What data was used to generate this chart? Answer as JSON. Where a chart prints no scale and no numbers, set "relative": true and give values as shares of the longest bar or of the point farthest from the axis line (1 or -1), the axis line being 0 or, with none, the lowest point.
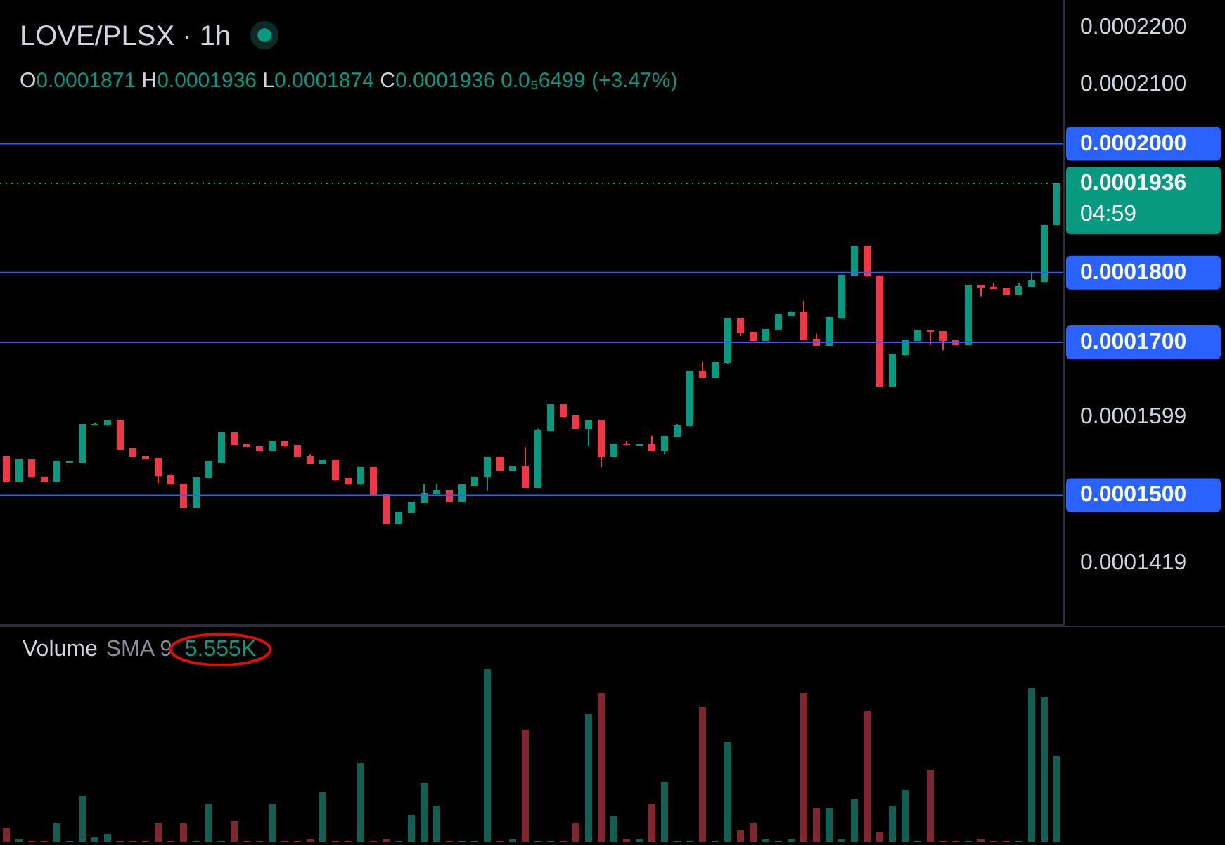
{
  "chart_data": [
    {
      "type": "candlestick",
      "title": "LOVE/PLSX · 1h",
      "subtitle": "O0.0001871 H0.0001936 L0.0001874 C0.0001936 0.0₅6499 (+3.47%)",
      "log": true,
      "categories": [
        null,
        null,
        null,
        null,
        null,
        null,
        null,
        null,
        null,
        null,
        null,
        null,
        null,
        null,
        null,
        null,
        null,
        null,
        null,
        null,
        null,
        null,
        null,
        null,
        null,
        null,
        null,
        null,
        null,
        null,
        null,
        null,
        null,
        null,
        null,
        null,
        null,
        null,
        null,
        null,
        null,
        null,
        null,
        null,
        null,
        null,
        null,
        null,
        null,
        null,
        null,
        null,
        null,
        null,
        null,
        null,
        null,
        null,
        null,
        null,
        null,
        null,
        null,
        null,
        null,
        null,
        null,
        null,
        null,
        null,
        null,
        null,
        null,
        null,
        null,
        null,
        null,
        null,
        null,
        null,
        null,
        null,
        null,
        null
      ],
      "ylim": [
        0.0001348,
        0.000225
      ],
      "yticks": [
        {
          "value": 0.0001419,
          "label": "0.0001419"
        },
        {
          "value": 0.0001599,
          "label": "0.0001599"
        },
        {
          "value": 0.00021,
          "label": "0.0002100"
        },
        {
          "value": 0.00022,
          "label": "0.0002200"
        }
      ],
      "ref_lines": [
        {
          "axis": "y",
          "value": 0.00015,
          "label": "0.0001500",
          "color": "#2962ff",
          "line_style": "solid"
        },
        {
          "axis": "y",
          "value": 0.00017,
          "label": "0.0001700",
          "color": "#2962ff",
          "line_style": "solid"
        },
        {
          "axis": "y",
          "value": 0.00018,
          "label": "0.0001800",
          "color": "#2962ff",
          "line_style": "solid"
        },
        {
          "axis": "y",
          "value": 0.0002,
          "label": "0.0002000",
          "color": "#2962ff",
          "line_style": "solid"
        },
        {
          "axis": "y",
          "value": 0.0001936,
          "label": "0.0001936\n04:59",
          "color": "#089981",
          "line_style": "dotted"
        }
      ],
      "colors": [
        "#f23645",
        "#089981",
        "#f23645",
        "#f23645",
        "#089981",
        "#089981",
        "#089981",
        "#089981",
        "#089981",
        "#f23645",
        "#f23645",
        "#f23645",
        "#f23645",
        "#f23645",
        "#f23645",
        "#089981",
        "#089981",
        "#089981",
        "#f23645",
        "#f23645",
        "#f23645",
        "#089981",
        "#f23645",
        "#f23645",
        "#f23645",
        "#089981",
        "#f23645",
        "#f23645",
        "#089981",
        "#f23645",
        "#f23645",
        "#089981",
        "#089981",
        "#089981",
        "#089981",
        "#f23645",
        "#089981",
        "#089981",
        "#089981",
        "#f23645",
        "#089981",
        "#f23645",
        "#089981",
        "#089981",
        "#f23645",
        "#f23645",
        "#089981",
        "#f23645",
        "#089981",
        "#f23645",
        "#089981",
        "#f23645",
        "#089981",
        "#089981",
        "#089981",
        "#f23645",
        "#089981",
        "#089981",
        "#f23645",
        "#f23645",
        "#089981",
        "#089981",
        "#089981",
        "#f23645",
        "#f23645",
        "#089981",
        "#089981",
        "#089981",
        "#f23645",
        "#f23645",
        "#089981",
        "#089981",
        "#089981",
        "#f23645",
        "#f23645",
        "#f23645",
        "#089981",
        "#f23645",
        "#f23645",
        "#f23645",
        "#089981",
        "#089981",
        "#089981",
        "#089981"
      ],
      "ohlc": [
        [
          0.0001549,
          0.0001549,
          0.0001517,
          0.0001517
        ],
        [
          0.0001517,
          0.0001545,
          0.0001517,
          0.0001545
        ],
        [
          0.0001545,
          0.0001545,
          0.0001522,
          0.0001522
        ],
        [
          0.0001523,
          0.0001523,
          0.0001517,
          0.0001517
        ],
        [
          0.0001517,
          0.0001542,
          0.0001517,
          0.0001542
        ],
        [
          0.0001541,
          0.0001542,
          0.0001541,
          0.0001542
        ],
        [
          0.0001541,
          0.000159,
          0.0001541,
          0.000159
        ],
        [
          0.0001588,
          0.0001591,
          0.0001588,
          0.000159
        ],
        [
          0.0001588,
          0.0001595,
          0.0001588,
          0.0001595
        ],
        [
          0.0001595,
          0.0001595,
          0.0001557,
          0.0001557
        ],
        [
          0.0001559,
          0.0001559,
          0.0001548,
          0.0001548
        ],
        [
          0.0001549,
          0.0001549,
          0.0001545,
          0.0001545
        ],
        [
          0.0001547,
          0.0001547,
          0.0001515,
          0.0001524
        ],
        [
          0.0001526,
          0.0001526,
          0.0001513,
          0.0001513
        ],
        [
          0.0001514,
          0.0001514,
          0.0001484,
          0.0001485
        ],
        [
          0.0001485,
          0.0001522,
          0.0001485,
          0.0001522
        ],
        [
          0.0001521,
          0.0001542,
          0.0001521,
          0.0001542
        ],
        [
          0.0001541,
          0.0001579,
          0.0001541,
          0.0001579
        ],
        [
          0.0001579,
          0.0001579,
          0.0001563,
          0.0001563
        ],
        [
          0.0001564,
          0.0001564,
          0.000156,
          0.000156
        ],
        [
          0.0001561,
          0.0001561,
          0.0001555,
          0.0001555
        ],
        [
          0.0001555,
          0.0001568,
          0.0001555,
          0.0001568
        ],
        [
          0.0001568,
          0.0001568,
          0.0001561,
          0.0001561
        ],
        [
          0.0001563,
          0.0001563,
          0.0001548,
          0.0001548
        ],
        [
          0.0001549,
          0.0001551,
          0.0001539,
          0.0001539
        ],
        [
          0.0001539,
          0.0001544,
          0.0001539,
          0.0001544
        ],
        [
          0.0001544,
          0.0001544,
          0.0001518,
          0.0001519
        ],
        [
          0.0001521,
          0.0001521,
          0.0001513,
          0.0001513
        ],
        [
          0.0001513,
          0.0001535,
          0.0001513,
          0.0001535
        ],
        [
          0.0001535,
          0.0001535,
          0.00015,
          0.00015
        ],
        [
          0.0001501,
          0.0001501,
          0.0001465,
          0.0001465
        ],
        [
          0.0001465,
          0.000148,
          0.0001465,
          0.000148
        ],
        [
          0.0001478,
          0.0001492,
          0.0001478,
          0.0001492
        ],
        [
          0.0001491,
          0.0001514,
          0.0001491,
          0.0001503
        ],
        [
          0.0001501,
          0.0001514,
          0.0001501,
          0.0001506
        ],
        [
          0.0001506,
          0.0001506,
          0.0001492,
          0.0001492
        ],
        [
          0.0001492,
          0.0001513,
          0.0001492,
          0.0001513
        ],
        [
          0.0001512,
          0.0001523,
          0.0001512,
          0.0001523
        ],
        [
          0.0001522,
          0.0001548,
          0.0001506,
          0.0001548
        ],
        [
          0.0001548,
          0.0001548,
          0.000153,
          0.000153
        ],
        [
          0.000153,
          0.0001536,
          0.000153,
          0.0001536
        ],
        [
          0.0001536,
          0.000156,
          0.0001509,
          0.0001509
        ],
        [
          0.0001509,
          0.0001584,
          0.0001509,
          0.0001582
        ],
        [
          0.0001581,
          0.0001616,
          0.0001581,
          0.0001616
        ],
        [
          0.0001616,
          0.0001616,
          0.0001599,
          0.0001599
        ],
        [
          0.0001601,
          0.0001601,
          0.0001584,
          0.0001584
        ],
        [
          0.0001584,
          0.0001595,
          0.0001561,
          0.0001595
        ],
        [
          0.0001595,
          0.0001595,
          0.0001535,
          0.0001548
        ],
        [
          0.0001548,
          0.0001565,
          0.0001548,
          0.0001565
        ],
        [
          0.0001565,
          0.0001568,
          0.0001563,
          0.0001563
        ],
        [
          0.0001563,
          0.0001564,
          0.0001563,
          0.0001564
        ],
        [
          0.0001564,
          0.0001575,
          0.0001555,
          0.0001555
        ],
        [
          0.0001555,
          0.0001575,
          0.0001551,
          0.0001575
        ],
        [
          0.0001574,
          0.000159,
          0.0001574,
          0.0001588
        ],
        [
          0.0001587,
          0.000166,
          0.0001587,
          0.000166
        ],
        [
          0.000166,
          0.0001673,
          0.0001652,
          0.0001652
        ],
        [
          0.0001652,
          0.0001673,
          0.0001652,
          0.0001673
        ],
        [
          0.0001672,
          0.0001734,
          0.000167,
          0.0001734
        ],
        [
          0.0001734,
          0.0001734,
          0.0001709,
          0.0001713
        ],
        [
          0.0001715,
          0.0001715,
          0.0001702,
          0.0001702
        ],
        [
          0.0001702,
          0.0001719,
          0.0001702,
          0.0001719
        ],
        [
          0.0001718,
          0.000174,
          0.0001718,
          0.000174
        ],
        [
          0.0001738,
          0.0001743,
          0.0001737,
          0.0001743
        ],
        [
          0.0001743,
          0.0001759,
          0.0001703,
          0.0001703
        ],
        [
          0.0001705,
          0.0001712,
          0.0001695,
          0.0001695
        ],
        [
          0.0001695,
          0.0001736,
          0.0001695,
          0.0001736
        ],
        [
          0.0001734,
          0.0001797,
          0.0001734,
          0.0001797
        ],
        [
          0.0001796,
          0.0001839,
          0.0001796,
          0.0001839
        ],
        [
          0.0001839,
          0.0001839,
          0.0001794,
          0.0001794
        ],
        [
          0.0001796,
          0.0001796,
          0.0001639,
          0.0001639
        ],
        [
          0.0001639,
          0.0001683,
          0.0001639,
          0.0001683
        ],
        [
          0.0001682,
          0.0001703,
          0.0001682,
          0.0001703
        ],
        [
          0.0001702,
          0.0001718,
          0.0001702,
          0.0001718
        ],
        [
          0.0001718,
          0.0001718,
          0.0001696,
          0.0001715
        ],
        [
          0.0001716,
          0.0001716,
          0.0001689,
          0.0001702
        ],
        [
          0.0001703,
          0.0001703,
          0.0001696,
          0.0001696
        ],
        [
          0.0001696,
          0.0001782,
          0.0001696,
          0.0001782
        ],
        [
          0.0001782,
          0.0001782,
          0.0001765,
          0.0001777
        ],
        [
          0.0001779,
          0.0001785,
          0.0001776,
          0.0001776
        ],
        [
          0.0001777,
          0.0001777,
          0.0001768,
          0.0001768
        ],
        [
          0.0001768,
          0.0001785,
          0.0001768,
          0.000178
        ],
        [
          0.0001779,
          0.00018,
          0.0001779,
          0.0001788
        ],
        [
          0.0001786,
          0.0001871,
          0.0001786,
          0.0001871
        ],
        [
          0.0001871,
          0.0001936,
          0.0001871,
          0.0001936
        ]
      ]
    },
    {
      "type": "bar",
      "relative": true,
      "title": "Volume",
      "subtitle": "SMA 9",
      "annotations": [
        "5.555K"
      ],
      "categories": [
        null,
        null,
        null,
        null,
        null,
        null,
        null,
        null,
        null,
        null,
        null,
        null,
        null,
        null,
        null,
        null,
        null,
        null,
        null,
        null,
        null,
        null,
        null,
        null,
        null,
        null,
        null,
        null,
        null,
        null,
        null,
        null,
        null,
        null,
        null,
        null,
        null,
        null,
        null,
        null,
        null,
        null,
        null,
        null,
        null,
        null,
        null,
        null,
        null,
        null,
        null,
        null,
        null,
        null,
        null,
        null,
        null,
        null,
        null,
        null,
        null,
        null,
        null,
        null,
        null,
        null,
        null,
        null,
        null,
        null,
        null,
        null,
        null,
        null,
        null,
        null,
        null,
        null,
        null,
        null,
        null,
        null,
        null,
        null
      ],
      "values": [
        0.08,
        0.02,
        0.01,
        0.01,
        0.11,
        0.01,
        0.27,
        0.03,
        0.05,
        0.01,
        0.01,
        0.01,
        0.11,
        0.01,
        0.11,
        0.01,
        0.22,
        0.01,
        0.12,
        0.01,
        0.01,
        0.22,
        0.01,
        0.01,
        0.02,
        0.29,
        0.01,
        0.01,
        0.46,
        0.01,
        0.02,
        0.01,
        0.16,
        0.34,
        0.21,
        0.01,
        0.01,
        0.01,
        1,
        0.01,
        0.02,
        0.65,
        0.01,
        0.01,
        0.01,
        0.11,
        0.74,
        0.86,
        0.15,
        0.02,
        0.02,
        0.22,
        0.35,
        0.01,
        0.01,
        0.78,
        0.01,
        0.58,
        0.07,
        0.11,
        0.02,
        0.01,
        0.02,
        0.86,
        0.2,
        0.2,
        0.02,
        0.25,
        0.76,
        0.06,
        0.21,
        0.3,
        0.01,
        0.42,
        0.01,
        0.01,
        0.01,
        0.02,
        0.01,
        0.01,
        0.01,
        0.89,
        0.84,
        0.5
      ],
      "colors": [
        "#7f2630",
        "#115e52",
        "#7f2630",
        "#7f2630",
        "#115e52",
        "#115e52",
        "#115e52",
        "#115e52",
        "#115e52",
        "#7f2630",
        "#7f2630",
        "#7f2630",
        "#7f2630",
        "#7f2630",
        "#7f2630",
        "#115e52",
        "#115e52",
        "#115e52",
        "#7f2630",
        "#7f2630",
        "#7f2630",
        "#115e52",
        "#7f2630",
        "#7f2630",
        "#7f2630",
        "#115e52",
        "#7f2630",
        "#7f2630",
        "#115e52",
        "#7f2630",
        "#7f2630",
        "#115e52",
        "#115e52",
        "#115e52",
        "#115e52",
        "#7f2630",
        "#115e52",
        "#115e52",
        "#115e52",
        "#7f2630",
        "#115e52",
        "#7f2630",
        "#115e52",
        "#115e52",
        "#7f2630",
        "#7f2630",
        "#115e52",
        "#7f2630",
        "#115e52",
        "#7f2630",
        "#115e52",
        "#7f2630",
        "#115e52",
        "#115e52",
        "#115e52",
        "#7f2630",
        "#115e52",
        "#115e52",
        "#7f2630",
        "#7f2630",
        "#115e52",
        "#115e52",
        "#115e52",
        "#7f2630",
        "#7f2630",
        "#115e52",
        "#115e52",
        "#115e52",
        "#7f2630",
        "#7f2630",
        "#115e52",
        "#115e52",
        "#115e52",
        "#7f2630",
        "#7f2630",
        "#7f2630",
        "#115e52",
        "#7f2630",
        "#7f2630",
        "#7f2630",
        "#115e52",
        "#115e52",
        "#115e52",
        "#115e52"
      ]
    }
  ]
}
